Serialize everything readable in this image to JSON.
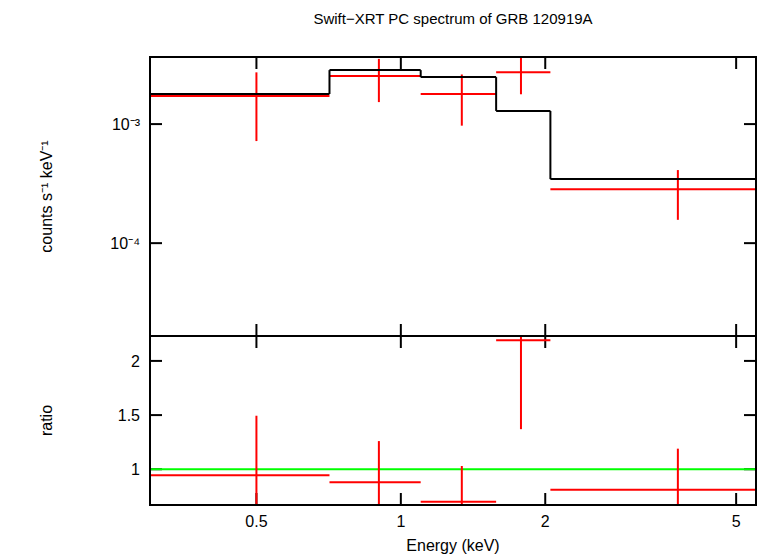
{
  "chart_data": [
    {
      "type": "scatter",
      "title": "Swift−XRT PC spectrum of GRB 120919A",
      "y_label": "counts s⁻¹ keV⁻¹",
      "log": true,
      "tick_labels": "y",
      "xlim": [
        0.3,
        5.5
      ],
      "ylim": [
        1.66e-05,
        0.00366
      ],
      "xticks": [
        0.5,
        1,
        2,
        5
      ],
      "yticks": [
        {
          "value": 0.0001,
          "label": "10⁻⁴"
        },
        {
          "value": 0.001,
          "label": "10⁻³"
        }
      ],
      "bins": [
        0.3,
        0.71,
        1.1,
        1.58,
        2.05,
        5.5
      ],
      "series": [
        {
          "type": "scatter",
          "color": "#ff0000",
          "x": [
            0.5,
            0.9,
            1.34,
            1.78,
            3.78
          ],
          "values": [
            0.00172,
            0.00253,
            0.00179,
            0.00273,
            0.000284
          ],
          "errors": [
            0.001,
            0.001,
            0.00082,
            0.00095,
            0.000127
          ]
        },
        {
          "type": "step",
          "color": "#000000",
          "values": [
            0.00179,
            0.00284,
            0.00248,
            0.00129,
            0.000345
          ]
        }
      ]
    },
    {
      "type": "scatter",
      "x_label": "Energy (keV)",
      "y_label": "ratio",
      "log": "x",
      "xlim": [
        0.3,
        5.5
      ],
      "ylim": [
        0.67,
        2.23
      ],
      "xticks": [
        0.5,
        1,
        2,
        5
      ],
      "yticks": [
        1,
        1.5,
        2
      ],
      "bins": [
        0.3,
        0.71,
        1.1,
        1.58,
        2.05,
        5.5
      ],
      "reference_line": {
        "value": 1,
        "color": "#00ff00"
      },
      "series": [
        {
          "type": "scatter",
          "color": "#ff0000",
          "x": [
            0.5,
            0.9,
            1.34,
            1.78,
            3.78
          ],
          "values": [
            0.944,
            0.88,
            0.7,
            2.19,
            0.81
          ],
          "errors": [
            0.55,
            0.38,
            0.33,
            0.82,
            0.38
          ]
        }
      ]
    }
  ]
}
